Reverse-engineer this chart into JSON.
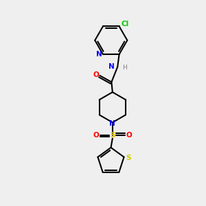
{
  "background_color": "#efefef",
  "bond_color": "#000000",
  "atom_colors": {
    "N": "#0000ff",
    "O": "#ff0000",
    "S_thiophene": "#cccc00",
    "S_sulfonyl": "#e6c800",
    "Cl": "#00cc00",
    "H": "#808080",
    "C": "#000000"
  },
  "figsize": [
    3.0,
    3.0
  ],
  "dpi": 100
}
